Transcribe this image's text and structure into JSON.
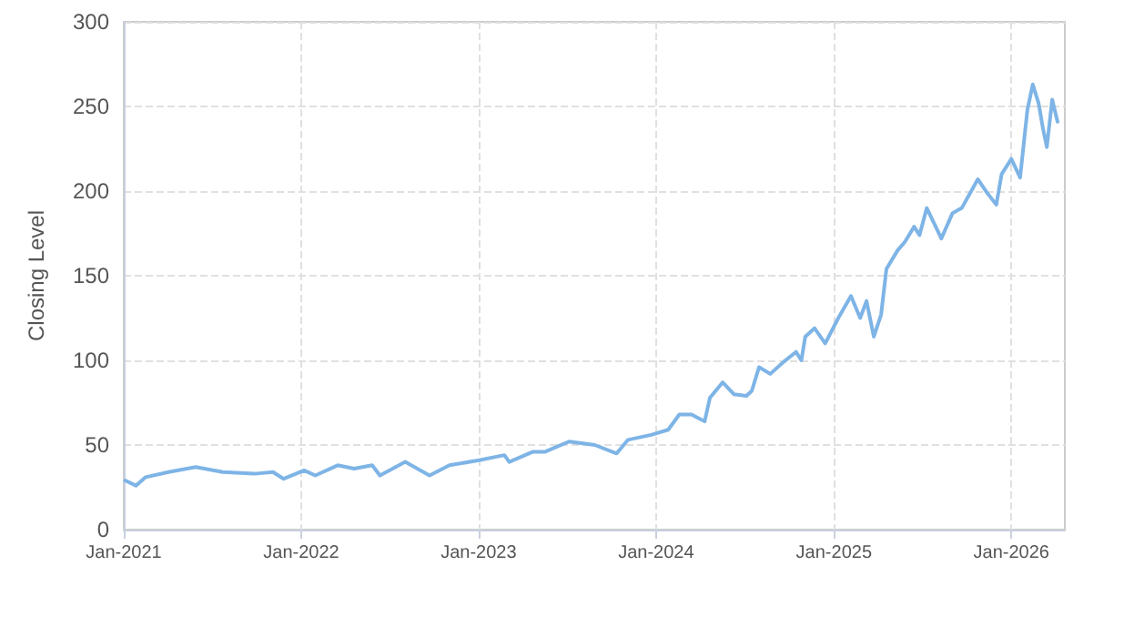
{
  "chart_data": {
    "type": "line",
    "ylabel": "Closing Level",
    "x": [
      "2021-01-04",
      "2021-01-26",
      "2021-02-15",
      "2021-04-03",
      "2021-05-29",
      "2021-07-24",
      "2021-09-27",
      "2021-11-04",
      "2021-11-26",
      "2022-01-07",
      "2022-01-30",
      "2022-03-17",
      "2022-04-20",
      "2022-05-27",
      "2022-06-12",
      "2022-08-03",
      "2022-09-22",
      "2022-11-02",
      "2023-01-02",
      "2023-02-23",
      "2023-03-05",
      "2023-04-23",
      "2023-05-18",
      "2023-07-06",
      "2023-08-28",
      "2023-10-12",
      "2023-11-04",
      "2023-12-22",
      "2024-01-26",
      "2024-02-18",
      "2024-03-14",
      "2024-04-10",
      "2024-04-21",
      "2024-05-17",
      "2024-06-09",
      "2024-07-05",
      "2024-07-16",
      "2024-07-31",
      "2024-08-23",
      "2024-09-19",
      "2024-10-15",
      "2024-10-26",
      "2024-11-03",
      "2024-11-22",
      "2024-12-14",
      "2025-01-10",
      "2025-02-05",
      "2025-02-24",
      "2025-03-09",
      "2025-03-24",
      "2025-04-08",
      "2025-04-19",
      "2025-05-12",
      "2025-05-27",
      "2025-06-15",
      "2025-06-26",
      "2025-07-11",
      "2025-08-10",
      "2025-09-02",
      "2025-09-21",
      "2025-10-24",
      "2025-11-12",
      "2025-12-01",
      "2025-12-12",
      "2026-01-01",
      "2026-01-19",
      "2026-02-03",
      "2026-02-14",
      "2026-02-26",
      "2026-03-07",
      "2026-03-15",
      "2026-03-26",
      "2026-04-06"
    ],
    "series": [
      {
        "color": "#7eb4e6",
        "values": [
          29,
          26,
          31,
          34,
          37,
          34,
          33,
          34,
          30,
          35,
          32,
          38,
          36,
          38,
          32,
          40,
          32,
          38,
          41,
          44,
          40,
          46,
          46,
          52,
          50,
          45,
          53,
          56,
          59,
          68,
          68,
          64,
          78,
          87,
          80,
          79,
          82,
          96,
          92,
          99,
          105,
          100,
          114,
          119,
          110,
          125,
          138,
          125,
          135,
          114,
          127,
          154,
          165,
          170,
          179,
          174,
          190,
          172,
          187,
          190,
          207,
          199,
          192,
          210,
          219,
          208,
          248,
          263,
          252,
          237,
          226,
          254,
          241
        ]
      }
    ],
    "xlim": [
      "2021-01-01",
      "2026-04-21"
    ],
    "xticks": [
      {
        "value": "2021-01-01",
        "label": "Jan-2021"
      },
      {
        "value": "2022-01-01",
        "label": "Jan-2022"
      },
      {
        "value": "2023-01-01",
        "label": "Jan-2023"
      },
      {
        "value": "2024-01-01",
        "label": "Jan-2024"
      },
      {
        "value": "2025-01-01",
        "label": "Jan-2025"
      },
      {
        "value": "2026-01-01",
        "label": "Jan-2026"
      }
    ],
    "ylim": [
      0,
      300
    ],
    "yticks": [
      0,
      50,
      100,
      150,
      200,
      250,
      300
    ],
    "grid": true,
    "marker": "none",
    "line_style": "solid"
  }
}
